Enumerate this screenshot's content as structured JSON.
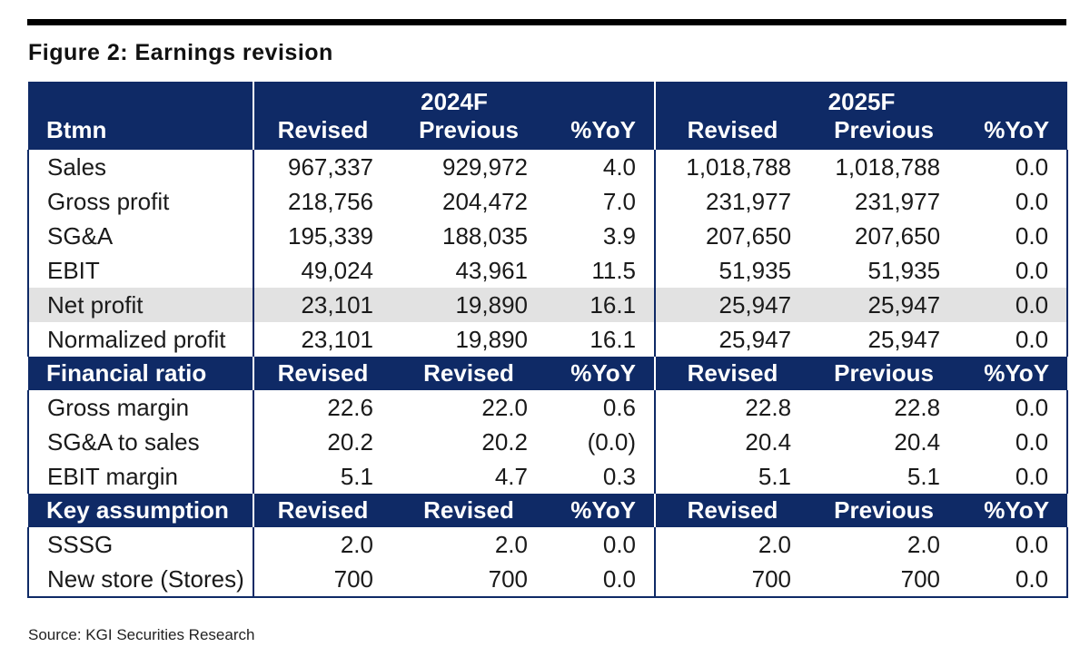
{
  "figure_title": "Figure 2: Earnings revision",
  "source": "Source: KGI Securities Research",
  "years": [
    "2024F",
    "2025F"
  ],
  "sections": [
    {
      "label": "Btmn",
      "columns": [
        "Revised",
        "Previous",
        "%YoY",
        "Revised",
        "Previous",
        "%YoY"
      ],
      "rows": [
        {
          "label": "Sales",
          "values": [
            "967,337",
            "929,972",
            "4.0",
            "1,018,788",
            "1,018,788",
            "0.0"
          ]
        },
        {
          "label": "Gross profit",
          "values": [
            "218,756",
            "204,472",
            "7.0",
            "231,977",
            "231,977",
            "0.0"
          ]
        },
        {
          "label": "SG&A",
          "values": [
            "195,339",
            "188,035",
            "3.9",
            "207,650",
            "207,650",
            "0.0"
          ]
        },
        {
          "label": "EBIT",
          "values": [
            "49,024",
            "43,961",
            "11.5",
            "51,935",
            "51,935",
            "0.0"
          ]
        },
        {
          "label": "Net profit",
          "values": [
            "23,101",
            "19,890",
            "16.1",
            "25,947",
            "25,947",
            "0.0"
          ]
        },
        {
          "label": "Normalized profit",
          "values": [
            "23,101",
            "19,890",
            "16.1",
            "25,947",
            "25,947",
            "0.0"
          ]
        }
      ]
    },
    {
      "label": "Financial ratio",
      "columns": [
        "Revised",
        "Revised",
        "%YoY",
        "Revised",
        "Previous",
        "%YoY"
      ],
      "rows": [
        {
          "label": "Gross margin",
          "values": [
            "22.6",
            "22.0",
            "0.6",
            "22.8",
            "22.8",
            "0.0"
          ]
        },
        {
          "label": "SG&A to sales",
          "values": [
            "20.2",
            "20.2",
            "(0.0)",
            "20.4",
            "20.4",
            "0.0"
          ]
        },
        {
          "label": "EBIT margin",
          "values": [
            "5.1",
            "4.7",
            "0.3",
            "5.1",
            "5.1",
            "0.0"
          ]
        }
      ]
    },
    {
      "label": "Key assumption",
      "columns": [
        "Revised",
        "Revised",
        "%YoY",
        "Revised",
        "Previous",
        "%YoY"
      ],
      "rows": [
        {
          "label": "SSSG",
          "values": [
            "2.0",
            "2.0",
            "0.0",
            "2.0",
            "2.0",
            "0.0"
          ]
        },
        {
          "label": "New store (Stores)",
          "values": [
            "700",
            "700",
            "0.0",
            "700",
            "700",
            "0.0"
          ]
        }
      ]
    }
  ]
}
